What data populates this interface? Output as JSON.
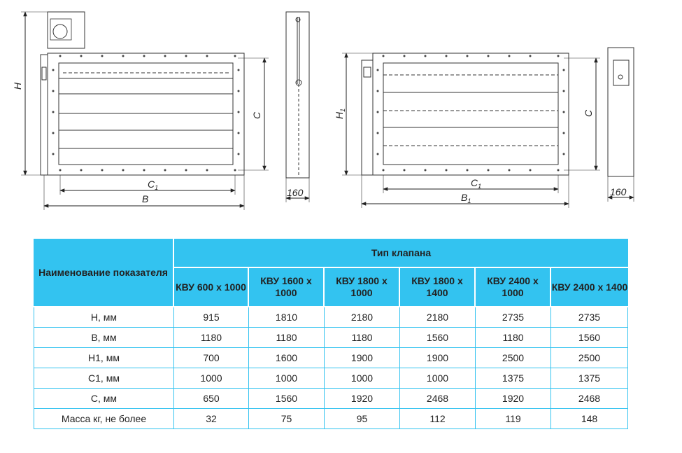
{
  "drawings": {
    "dim_labels": {
      "H": "H",
      "C": "C",
      "C1": "C",
      "C1_sub": "1",
      "B": "B",
      "depth_left": "160",
      "H1": "H",
      "H1_sub": "1",
      "C_right": "C",
      "C1_right": "C",
      "C1_right_sub": "1",
      "B1": "B",
      "B1_sub": "1",
      "depth_right": "160"
    }
  },
  "table": {
    "param_header": "Наименование показателя",
    "type_header": "Тип клапана",
    "columns": [
      "КВУ 600 х 1000",
      "КВУ 1600 х 1000",
      "КВУ 1800 х 1000",
      "КВУ 1800 х 1400",
      "КВУ 2400 х 1000",
      "КВУ 2400 х 1400"
    ],
    "rows": [
      {
        "label": "H, мм",
        "values": [
          "915",
          "1810",
          "2180",
          "2180",
          "2735",
          "2735"
        ]
      },
      {
        "label": "B, мм",
        "values": [
          "1180",
          "1180",
          "1180",
          "1560",
          "1180",
          "1560"
        ]
      },
      {
        "label": "H1, мм",
        "values": [
          "700",
          "1600",
          "1900",
          "1900",
          "2500",
          "2500"
        ]
      },
      {
        "label": "C1, мм",
        "values": [
          "1000",
          "1000",
          "1000",
          "1000",
          "1375",
          "1375"
        ]
      },
      {
        "label": "C, мм",
        "values": [
          "650",
          "1560",
          "1920",
          "2468",
          "1920",
          "2468"
        ]
      },
      {
        "label": "Масса кг, не более",
        "values": [
          "32",
          "75",
          "95",
          "112",
          "119",
          "148"
        ]
      }
    ]
  },
  "colors": {
    "header_fill": "#33c3f0",
    "line": "#33c3f0",
    "drawing_stroke": "#333333"
  }
}
